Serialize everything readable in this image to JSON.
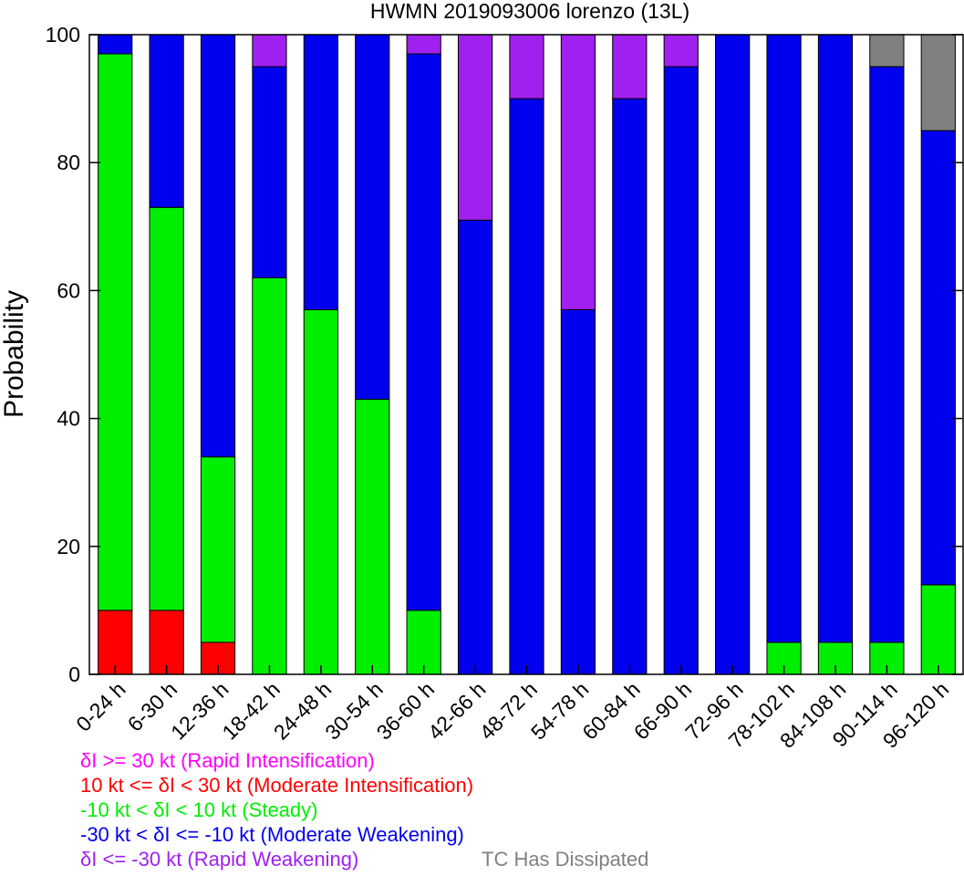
{
  "chart_data": {
    "type": "bar",
    "stacked": true,
    "title": "HWMN 2019093006 lorenzo (13L)",
    "xlabel": "",
    "ylabel": "Probability",
    "ylim": [
      0,
      100
    ],
    "yticks": [
      0,
      20,
      40,
      60,
      80,
      100
    ],
    "grid": false,
    "legend_position": "bottom-left",
    "categories": [
      "0-24 h",
      "6-30 h",
      "12-36 h",
      "18-42 h",
      "24-48 h",
      "30-54 h",
      "36-60 h",
      "42-66 h",
      "48-72 h",
      "54-78 h",
      "60-84 h",
      "66-90 h",
      "72-96 h",
      "78-102 h",
      "84-108 h",
      "90-114 h",
      "96-120 h"
    ],
    "series": [
      {
        "key": "mi",
        "color": "#ff0000",
        "values": [
          10,
          10,
          5,
          0,
          0,
          0,
          0,
          0,
          0,
          0,
          0,
          0,
          0,
          0,
          0,
          0,
          0
        ]
      },
      {
        "key": "steady",
        "color": "#00ee00",
        "values": [
          87,
          63,
          29,
          62,
          57,
          43,
          10,
          0,
          0,
          0,
          0,
          0,
          0,
          5,
          5,
          5,
          14
        ]
      },
      {
        "key": "mw",
        "color": "#0000ee",
        "values": [
          3,
          27,
          66,
          33,
          43,
          57,
          87,
          71,
          90,
          57,
          90,
          95,
          100,
          95,
          95,
          90,
          71
        ]
      },
      {
        "key": "rw",
        "color": "#a020f0",
        "values": [
          0,
          0,
          0,
          5,
          0,
          0,
          3,
          29,
          10,
          43,
          10,
          5,
          0,
          0,
          0,
          0,
          0
        ]
      },
      {
        "key": "dissipated",
        "color": "#808080",
        "values": [
          0,
          0,
          0,
          0,
          0,
          0,
          0,
          0,
          0,
          0,
          0,
          0,
          0,
          0,
          0,
          5,
          15
        ]
      }
    ],
    "legend": [
      {
        "text": "δI >= 30 kt (Rapid Intensification)",
        "color": "#ff00ff"
      },
      {
        "text": "10 kt <= δI < 30 kt (Moderate Intensification)",
        "color": "#ff0000"
      },
      {
        "text": "-10 kt < δI < 10 kt (Steady)",
        "color": "#00ee00"
      },
      {
        "text": "-30 kt < δI <= -10 kt (Moderate Weakening)",
        "color": "#0000ee"
      },
      {
        "text": "δI <= -30 kt (Rapid Weakening)",
        "color": "#a020f0"
      },
      {
        "text": "TC Has Dissipated",
        "color": "#808080"
      }
    ]
  }
}
